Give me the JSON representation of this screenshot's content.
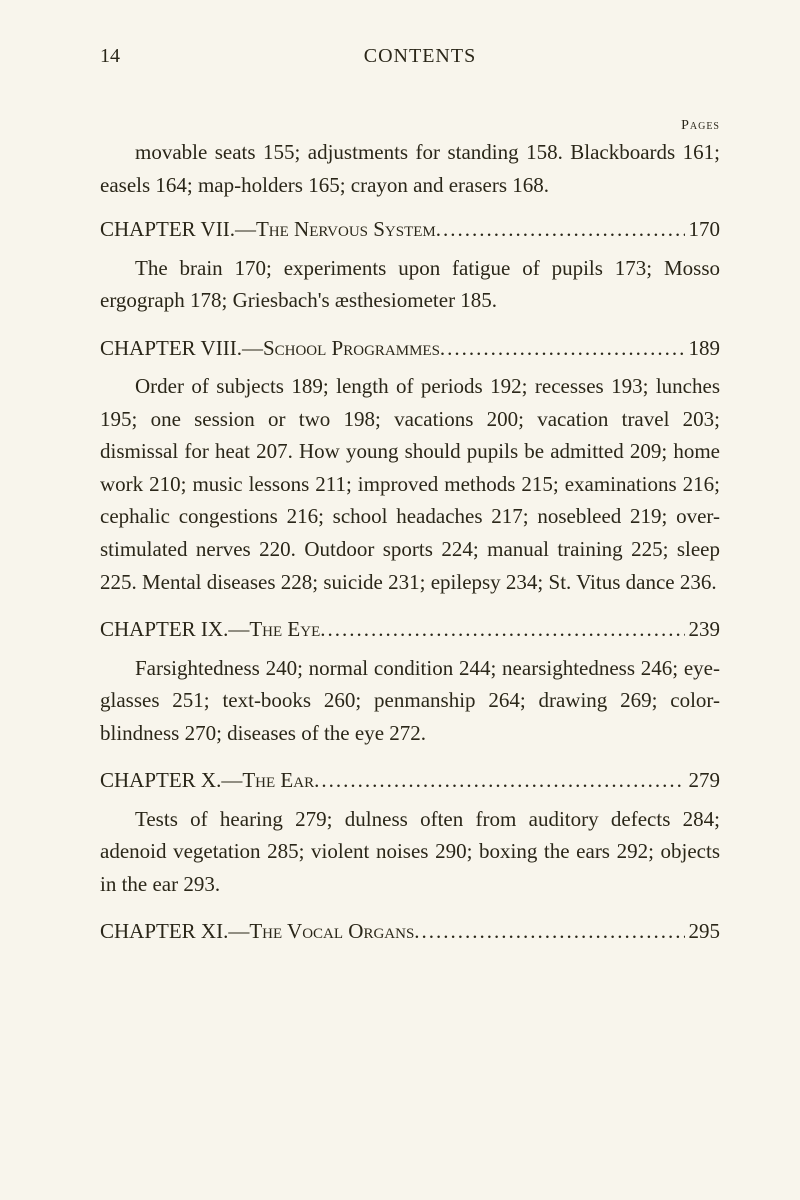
{
  "header": {
    "page_number": "14",
    "title": "CONTENTS",
    "pages_label": "Pages"
  },
  "content": {
    "intro_para": "movable seats 155; adjustments for standing 158. Blackboards 161; easels 164; map-holders 165; crayon and erasers 168.",
    "chapters": [
      {
        "chapter_label": "CHAPTER VII.—",
        "chapter_title": "The Nervous System",
        "page": "170",
        "body": "The brain 170; experiments upon fatigue of pupils 173; Mosso ergograph 178; Griesbach's æsthesiometer 185."
      },
      {
        "chapter_label": "CHAPTER VIII.—",
        "chapter_title": "School Programmes",
        "page": "189",
        "body": "Order of subjects 189; length of periods 192; recesses 193; lunches 195; one session or two 198; vacations 200; vacation travel 203; dismissal for heat 207. How young should pupils be admitted 209; home work 210; music lessons 211; improved methods 215; examinations 216; cephalic congestions 216; school headaches 217; nosebleed 219; over-stimulated nerves 220. Outdoor sports 224; manual training 225; sleep 225. Mental diseases 228; suicide 231; epilepsy 234; St. Vitus dance 236."
      },
      {
        "chapter_label": "CHAPTER IX.—",
        "chapter_title": "The Eye",
        "page": "239",
        "body": "Farsightedness 240; normal condition 244; nearsightedness 246; eye-glasses 251; text-books 260; penmanship 264; drawing 269; color-blindness 270; diseases of the eye 272."
      },
      {
        "chapter_label": "CHAPTER X.—",
        "chapter_title": "The Ear",
        "page": "279",
        "body": "Tests of hearing 279; dulness often from auditory defects 284; adenoid vegetation 285; violent noises 290; boxing the ears 292; objects in the ear 293."
      },
      {
        "chapter_label": "CHAPTER XI.—",
        "chapter_title": "The Vocal Organs",
        "page": "295",
        "body": ""
      }
    ]
  }
}
